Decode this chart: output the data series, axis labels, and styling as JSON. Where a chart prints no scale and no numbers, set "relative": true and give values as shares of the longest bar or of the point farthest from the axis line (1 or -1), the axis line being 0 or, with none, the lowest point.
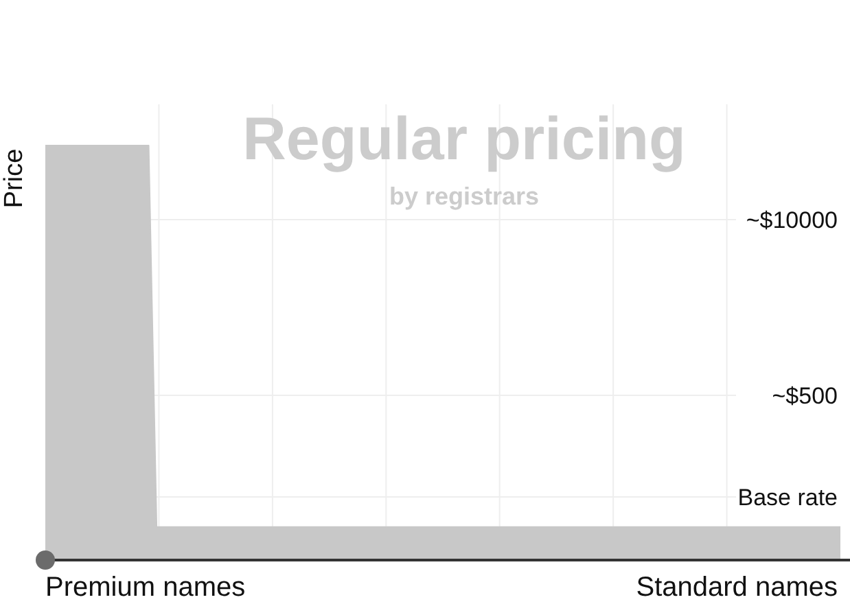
{
  "chart_data": {
    "type": "area",
    "title": "Regular pricing",
    "subtitle": "by registrars",
    "ylabel": "Price",
    "relative": true,
    "grid": "x",
    "categories": [
      null,
      null,
      null,
      null,
      null,
      null,
      null,
      null,
      null,
      null,
      null,
      null,
      null,
      null,
      null,
      null,
      null,
      null,
      null,
      null,
      null,
      null,
      null,
      null,
      null,
      null,
      null,
      null,
      null,
      null,
      null,
      null,
      null,
      null,
      null,
      null,
      null,
      null,
      null,
      null,
      null,
      null,
      null,
      null,
      null,
      null,
      null,
      null,
      null,
      null,
      null,
      null,
      null,
      null,
      null,
      null,
      null,
      null,
      null,
      null,
      null,
      null,
      null,
      null,
      null,
      null,
      null,
      null,
      null,
      null,
      null,
      null,
      null,
      null,
      null,
      null,
      null,
      null,
      null,
      null,
      null,
      null,
      null,
      null,
      null,
      null,
      null,
      null,
      null,
      null,
      null,
      null,
      null,
      null,
      null,
      null,
      null,
      null,
      null,
      null,
      null
    ],
    "values": [
      1,
      1,
      1,
      1,
      1,
      1,
      1,
      1,
      1,
      1,
      1,
      1,
      1,
      1,
      0.08,
      0.08,
      0.08,
      0.08,
      0.08,
      0.08,
      0.08,
      0.08,
      0.08,
      0.08,
      0.08,
      0.08,
      0.08,
      0.08,
      0.08,
      0.08,
      0.08,
      0.08,
      0.08,
      0.08,
      0.08,
      0.08,
      0.08,
      0.08,
      0.08,
      0.08,
      0.08,
      0.08,
      0.08,
      0.08,
      0.08,
      0.08,
      0.08,
      0.08,
      0.08,
      0.08,
      0.08,
      0.08,
      0.08,
      0.08,
      0.08,
      0.08,
      0.08,
      0.08,
      0.08,
      0.08,
      0.08,
      0.08,
      0.08,
      0.08,
      0.08,
      0.08,
      0.08,
      0.08,
      0.08,
      0.08,
      0.08,
      0.08,
      0.08,
      0.08,
      0.08,
      0.08,
      0.08,
      0.08,
      0.08,
      0.08,
      0.08,
      0.08,
      0.08,
      0.08,
      0.08,
      0.08,
      0.08,
      0.08,
      0.08,
      0.08,
      0.08,
      0.08,
      0.08,
      0.08,
      0.08,
      0.08,
      0.08,
      0.08,
      0.08,
      0.08,
      0.08
    ],
    "color": "#c8c8c8",
    "annotations": [
      "~$10000",
      "~$500",
      "Base rate",
      "Premium names",
      "Standard names"
    ]
  }
}
